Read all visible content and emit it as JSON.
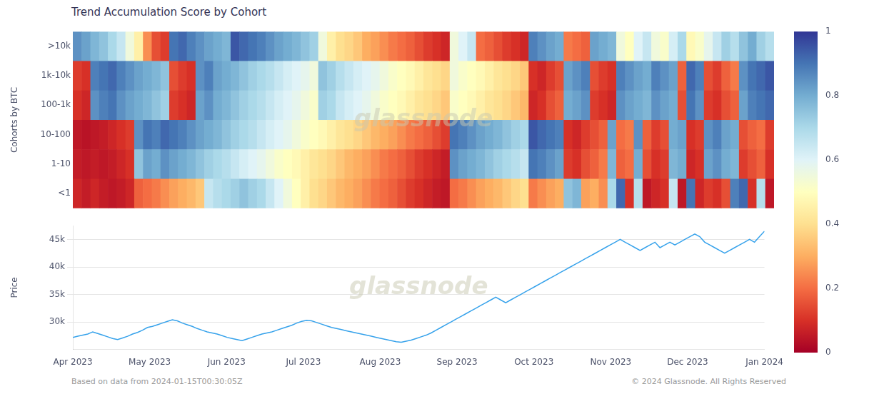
{
  "chart_data": [
    {
      "type": "heatmap",
      "title": "Trend Accumulation Score by Cohort",
      "ylabel": "Cohorts by BTC",
      "y_categories": [
        ">10k",
        "1k-10k",
        "100-1k",
        "10-100",
        "1-10",
        "<1"
      ],
      "cells": [
        [
          0.85,
          0.82,
          0.78,
          0.75,
          0.7,
          0.65,
          0.55,
          0.45,
          0.25,
          0.15,
          0.12,
          0.9,
          0.92,
          0.88,
          0.85,
          0.82,
          0.8,
          0.78,
          0.95,
          0.92,
          0.9,
          0.88,
          0.85,
          0.82,
          0.8,
          0.78,
          0.75,
          0.72,
          0.55,
          0.45,
          0.4,
          0.38,
          0.35,
          0.3,
          0.28,
          0.25,
          0.22,
          0.2,
          0.18,
          0.15,
          0.12,
          0.1,
          0.08,
          0.55,
          0.6,
          0.65,
          0.2,
          0.18,
          0.15,
          0.12,
          0.1,
          0.08,
          0.88,
          0.85,
          0.82,
          0.8,
          0.22,
          0.2,
          0.18,
          0.82,
          0.8,
          0.78,
          0.55,
          0.5,
          0.6,
          0.65,
          0.55,
          0.52,
          0.62,
          0.7,
          0.48,
          0.52,
          0.58,
          0.65,
          0.72,
          0.68,
          0.75,
          0.8,
          0.72,
          0.68
        ],
        [
          0.12,
          0.1,
          0.88,
          0.9,
          0.92,
          0.88,
          0.85,
          0.82,
          0.8,
          0.78,
          0.75,
          0.15,
          0.12,
          0.1,
          0.85,
          0.88,
          0.82,
          0.8,
          0.78,
          0.75,
          0.72,
          0.7,
          0.68,
          0.65,
          0.62,
          0.6,
          0.58,
          0.55,
          0.75,
          0.72,
          0.68,
          0.65,
          0.62,
          0.6,
          0.58,
          0.55,
          0.52,
          0.5,
          0.48,
          0.45,
          0.42,
          0.4,
          0.38,
          0.55,
          0.52,
          0.5,
          0.48,
          0.45,
          0.42,
          0.4,
          0.38,
          0.35,
          0.1,
          0.08,
          0.12,
          0.15,
          0.82,
          0.85,
          0.88,
          0.15,
          0.12,
          0.1,
          0.88,
          0.85,
          0.82,
          0.8,
          0.88,
          0.85,
          0.82,
          0.18,
          0.92,
          0.88,
          0.15,
          0.12,
          0.18,
          0.22,
          0.85,
          0.9,
          0.92,
          0.95
        ],
        [
          0.1,
          0.08,
          0.85,
          0.88,
          0.9,
          0.85,
          0.82,
          0.8,
          0.78,
          0.75,
          0.72,
          0.12,
          0.1,
          0.08,
          0.82,
          0.85,
          0.8,
          0.78,
          0.75,
          0.72,
          0.7,
          0.68,
          0.65,
          0.62,
          0.6,
          0.58,
          0.55,
          0.52,
          0.72,
          0.7,
          0.65,
          0.62,
          0.6,
          0.58,
          0.55,
          0.52,
          0.5,
          0.48,
          0.45,
          0.42,
          0.4,
          0.38,
          0.35,
          0.52,
          0.5,
          0.48,
          0.45,
          0.42,
          0.4,
          0.38,
          0.35,
          0.32,
          0.08,
          0.1,
          0.15,
          0.18,
          0.8,
          0.82,
          0.85,
          0.12,
          0.1,
          0.08,
          0.85,
          0.82,
          0.8,
          0.78,
          0.85,
          0.82,
          0.8,
          0.15,
          0.9,
          0.85,
          0.12,
          0.1,
          0.15,
          0.18,
          0.82,
          0.88,
          0.9,
          0.92
        ],
        [
          0.05,
          0.04,
          0.05,
          0.06,
          0.08,
          0.1,
          0.12,
          0.85,
          0.9,
          0.88,
          0.92,
          0.9,
          0.88,
          0.85,
          0.82,
          0.8,
          0.78,
          0.75,
          0.72,
          0.7,
          0.68,
          0.65,
          0.62,
          0.6,
          0.58,
          0.55,
          0.52,
          0.5,
          0.48,
          0.45,
          0.42,
          0.4,
          0.38,
          0.35,
          0.32,
          0.3,
          0.28,
          0.25,
          0.22,
          0.2,
          0.18,
          0.15,
          0.12,
          0.9,
          0.88,
          0.85,
          0.82,
          0.8,
          0.78,
          0.75,
          0.72,
          0.7,
          0.95,
          0.92,
          0.9,
          0.88,
          0.1,
          0.08,
          0.12,
          0.15,
          0.18,
          0.82,
          0.2,
          0.22,
          0.85,
          0.18,
          0.12,
          0.15,
          0.8,
          0.82,
          0.1,
          0.12,
          0.85,
          0.88,
          0.82,
          0.8,
          0.15,
          0.18,
          0.2,
          0.12
        ],
        [
          0.06,
          0.05,
          0.06,
          0.05,
          0.06,
          0.08,
          0.1,
          0.75,
          0.82,
          0.8,
          0.85,
          0.82,
          0.8,
          0.78,
          0.75,
          0.72,
          0.7,
          0.68,
          0.65,
          0.62,
          0.6,
          0.58,
          0.55,
          0.52,
          0.5,
          0.48,
          0.45,
          0.42,
          0.4,
          0.38,
          0.35,
          0.32,
          0.3,
          0.28,
          0.25,
          0.22,
          0.2,
          0.18,
          0.15,
          0.12,
          0.1,
          0.08,
          0.06,
          0.85,
          0.82,
          0.8,
          0.78,
          0.75,
          0.72,
          0.7,
          0.68,
          0.65,
          0.9,
          0.88,
          0.85,
          0.82,
          0.12,
          0.1,
          0.15,
          0.18,
          0.22,
          0.78,
          0.18,
          0.2,
          0.8,
          0.15,
          0.1,
          0.12,
          0.78,
          0.8,
          0.08,
          0.1,
          0.82,
          0.85,
          0.8,
          0.78,
          0.12,
          0.15,
          0.18,
          0.1
        ],
        [
          0.08,
          0.06,
          0.08,
          0.06,
          0.05,
          0.06,
          0.08,
          0.18,
          0.2,
          0.22,
          0.25,
          0.28,
          0.3,
          0.32,
          0.35,
          0.65,
          0.68,
          0.7,
          0.72,
          0.75,
          0.72,
          0.7,
          0.65,
          0.6,
          0.55,
          0.5,
          0.45,
          0.4,
          0.38,
          0.35,
          0.32,
          0.3,
          0.28,
          0.25,
          0.22,
          0.2,
          0.18,
          0.15,
          0.12,
          0.1,
          0.08,
          0.06,
          0.05,
          0.2,
          0.22,
          0.25,
          0.28,
          0.3,
          0.32,
          0.35,
          0.38,
          0.4,
          0.22,
          0.25,
          0.28,
          0.3,
          0.75,
          0.78,
          0.28,
          0.3,
          0.25,
          0.7,
          0.92,
          0.1,
          0.68,
          0.05,
          0.08,
          0.1,
          0.65,
          0.05,
          0.9,
          0.08,
          0.12,
          0.1,
          0.15,
          0.88,
          0.92,
          0.1,
          0.68,
          0.05
        ]
      ],
      "color": "RdYlBu",
      "color_range": [
        0,
        1
      ],
      "color_ticks": [
        0,
        0.2,
        0.4,
        0.6,
        0.8,
        1
      ],
      "grid": false,
      "tick_labels": "y",
      "annotations": [
        "glassnode"
      ]
    },
    {
      "type": "line",
      "ylabel": "Price",
      "values": [
        27200,
        27400,
        27600,
        27800,
        28200,
        27900,
        27600,
        27300,
        27000,
        26800,
        27100,
        27400,
        27800,
        28100,
        28500,
        29000,
        29200,
        29500,
        29800,
        30100,
        30400,
        30200,
        29800,
        29500,
        29200,
        28800,
        28500,
        28200,
        28000,
        27800,
        27500,
        27200,
        27000,
        26800,
        26600,
        26900,
        27200,
        27500,
        27800,
        28000,
        28200,
        28500,
        28800,
        29100,
        29400,
        29800,
        30100,
        30300,
        30200,
        29900,
        29600,
        29300,
        29000,
        28800,
        28600,
        28400,
        28200,
        28000,
        27800,
        27600,
        27400,
        27200,
        27000,
        26800,
        26600,
        26400,
        26300,
        26500,
        26700,
        27000,
        27300,
        27600,
        28000,
        28500,
        29000,
        29500,
        30000,
        30500,
        31000,
        31500,
        32000,
        32500,
        33000,
        33500,
        34000,
        34500,
        34000,
        33500,
        34000,
        34500,
        35000,
        35500,
        36000,
        36500,
        37000,
        37500,
        38000,
        38500,
        39000,
        39500,
        40000,
        40500,
        41000,
        41500,
        42000,
        42500,
        43000,
        43500,
        44000,
        44500,
        45000,
        44500,
        44000,
        43500,
        43000,
        43500,
        44000,
        44500,
        43500,
        44000,
        44500,
        44000,
        44500,
        45000,
        45500,
        46000,
        45500,
        44500,
        44000,
        43500,
        43000,
        42500,
        43000,
        43500,
        44000,
        44500,
        45000,
        44500,
        45500,
        46500
      ],
      "xticks": [
        "Apr 2023",
        "May 2023",
        "Jun 2023",
        "Jul 2023",
        "Aug 2023",
        "Sep 2023",
        "Oct 2023",
        "Nov 2023",
        "Dec 2023",
        "Jan 2024"
      ],
      "ylim": [
        25000,
        47500
      ],
      "yticks": [
        {
          "value": 30000,
          "label": "30k"
        },
        {
          "value": 35000,
          "label": "35k"
        },
        {
          "value": 40000,
          "label": "40k"
        },
        {
          "value": 45000,
          "label": "45k"
        }
      ],
      "grid": true,
      "annotations": [
        "glassnode"
      ],
      "footnotes": [
        "Based on data from 2024-01-15T00:30:05Z",
        "© 2024 Glassnode. All Rights Reserved"
      ]
    }
  ]
}
